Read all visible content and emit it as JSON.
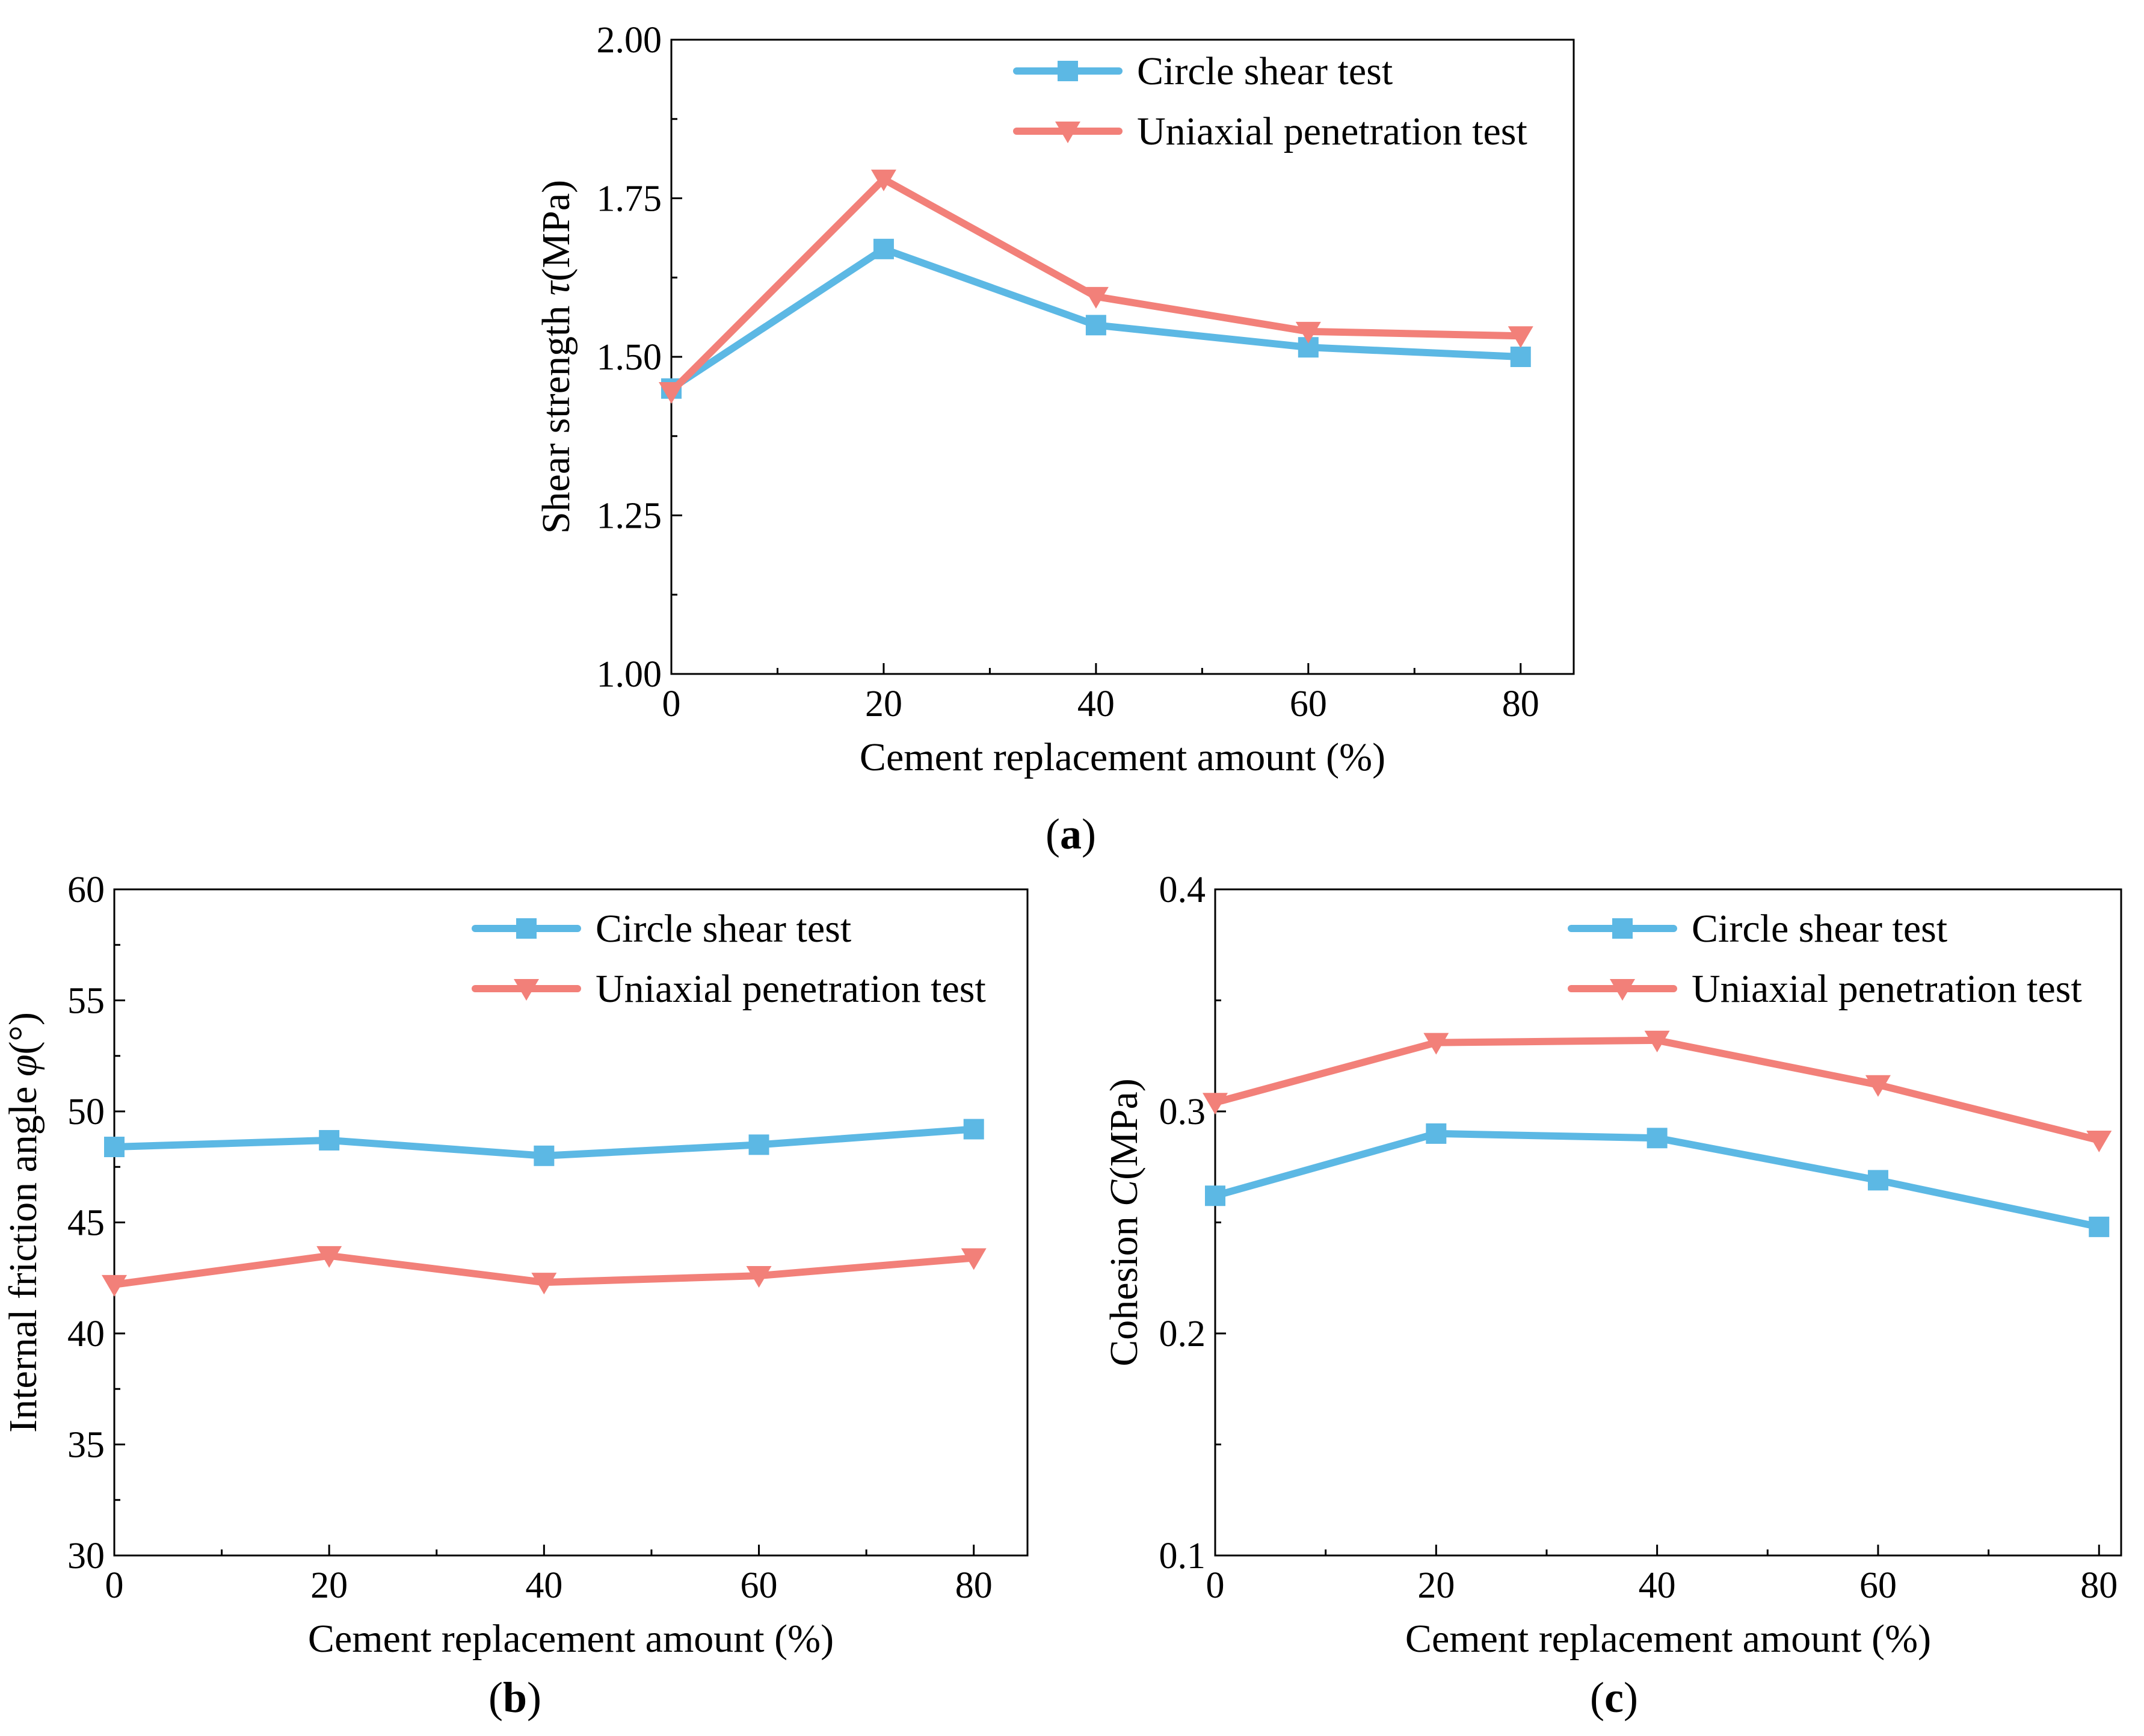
{
  "chart_data": [
    {
      "id": "a",
      "type": "line",
      "caption": "a",
      "xlabel": "Cement replacement amount (%)",
      "ylabel_prefix": "Shear strength ",
      "ylabel_symbol": "τ",
      "ylabel_suffix": "(MPa)",
      "x": [
        0,
        20,
        40,
        60,
        80
      ],
      "xlim": [
        0,
        85
      ],
      "ylim": [
        1.0,
        2.0
      ],
      "xticks": [
        "0",
        "20",
        "40",
        "60",
        "80"
      ],
      "yticks": [
        "1.00",
        "1.25",
        "1.50",
        "1.75",
        "2.00"
      ],
      "legend_position": "top-right",
      "series": [
        {
          "name": "Circle shear test",
          "color": "#5cb8e4",
          "marker": "square",
          "values": [
            1.45,
            1.67,
            1.55,
            1.515,
            1.5
          ]
        },
        {
          "name": "Uniaxial penetration test",
          "color": "#f28079",
          "marker": "triangle-down",
          "values": [
            1.445,
            1.78,
            1.595,
            1.54,
            1.533
          ]
        }
      ]
    },
    {
      "id": "b",
      "type": "line",
      "caption": "b",
      "xlabel": "Cement replacement amount  (%)",
      "ylabel_prefix": "Internal friction angle  ",
      "ylabel_symbol": "φ",
      "ylabel_suffix": "(°)",
      "x": [
        0,
        20,
        40,
        60,
        80
      ],
      "xlim": [
        0,
        85
      ],
      "ylim": [
        30,
        60
      ],
      "xticks": [
        "0",
        "20",
        "40",
        "60",
        "80"
      ],
      "yticks": [
        "30",
        "35",
        "40",
        "45",
        "50",
        "55",
        "60"
      ],
      "legend_position": "top-right",
      "series": [
        {
          "name": "Circle shear test",
          "color": "#5cb8e4",
          "marker": "square",
          "values": [
            48.4,
            48.7,
            48.0,
            48.5,
            49.2
          ]
        },
        {
          "name": "Uniaxial penetration test",
          "color": "#f28079",
          "marker": "triangle-down",
          "values": [
            42.2,
            43.5,
            42.3,
            42.6,
            43.4
          ]
        }
      ]
    },
    {
      "id": "c",
      "type": "line",
      "caption": "c",
      "xlabel": "Cement replacement amount  (%)",
      "ylabel_prefix": "Cohesion  ",
      "ylabel_symbol": "C",
      "ylabel_suffix": "(MPa)",
      "x": [
        0,
        20,
        40,
        60,
        80
      ],
      "xlim": [
        0,
        82
      ],
      "ylim": [
        0.1,
        0.4
      ],
      "xticks": [
        "0",
        "20",
        "40",
        "60",
        "80"
      ],
      "yticks": [
        "0.1",
        "0.2",
        "0.3",
        "0.4"
      ],
      "legend_position": "top-right",
      "series": [
        {
          "name": "Circle shear test",
          "color": "#5cb8e4",
          "marker": "square",
          "values": [
            0.262,
            0.29,
            0.288,
            0.269,
            0.248
          ]
        },
        {
          "name": "Uniaxial penetration test",
          "color": "#f28079",
          "marker": "triangle-down",
          "values": [
            0.304,
            0.331,
            0.332,
            0.312,
            0.287
          ]
        }
      ]
    }
  ]
}
